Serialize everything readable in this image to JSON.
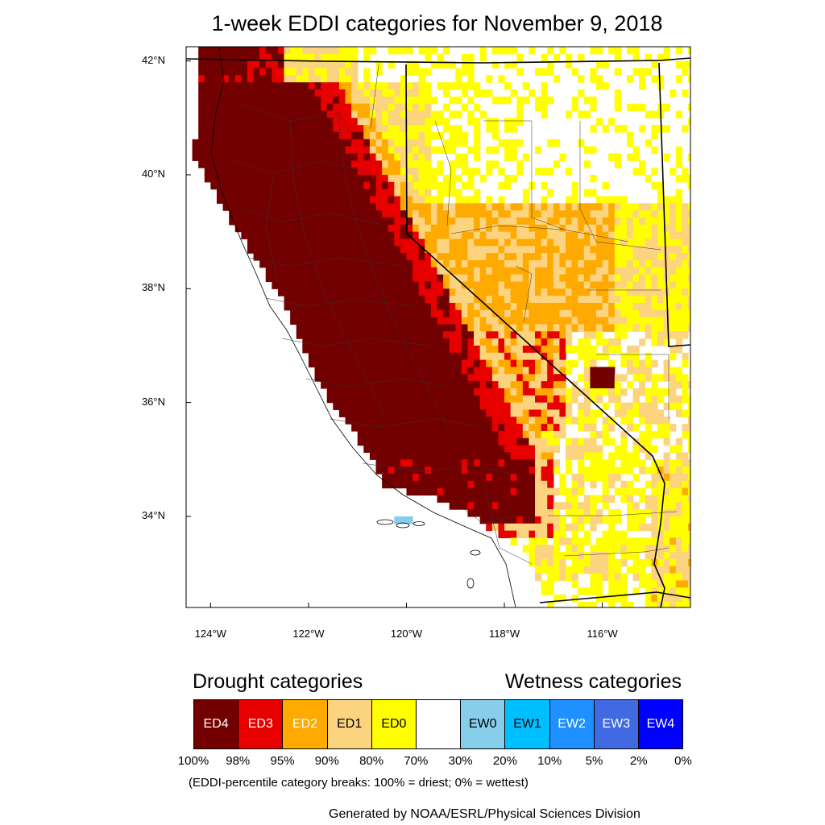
{
  "title": "1-week EDDI categories for November 9, 2018",
  "map": {
    "extent": {
      "lon_min": -124.5,
      "lon_max": -114.2,
      "lat_min": 32.4,
      "lat_max": 42.25
    },
    "lat_ticks": [
      {
        "value": 42,
        "label": "42°N"
      },
      {
        "value": 40,
        "label": "40°N"
      },
      {
        "value": 38,
        "label": "38°N"
      },
      {
        "value": 36,
        "label": "36°N"
      },
      {
        "value": 34,
        "label": "34°N"
      }
    ],
    "lon_ticks": [
      {
        "value": -124,
        "label": "124°W"
      },
      {
        "value": -122,
        "label": "122°W"
      },
      {
        "value": -120,
        "label": "120°W"
      },
      {
        "value": -118,
        "label": "118°W"
      },
      {
        "value": -116,
        "label": "116°W"
      }
    ],
    "cell_size_deg": 0.125,
    "region_categories": [
      {
        "region": "northern-california-coast-and-sacramento-valley",
        "category": "ED4"
      },
      {
        "region": "sierra-nevada-western-slope",
        "category": "ED4"
      },
      {
        "region": "central-coast-and-san-joaquin-valley",
        "category": "ED4"
      },
      {
        "region": "southern-california-mountains",
        "category": "ED4"
      },
      {
        "region": "sierra-crest-band",
        "category": "ED3"
      },
      {
        "region": "owens-valley",
        "category": "ED3"
      },
      {
        "region": "northeast-california-fringe",
        "category": "ED1"
      },
      {
        "region": "west-central-nevada",
        "category": "ED2"
      },
      {
        "region": "southern-nevada",
        "category": "ED1"
      },
      {
        "region": "northern-nevada-and-oregon-fringe",
        "category": "ED0"
      },
      {
        "region": "mojave-and-southwest-arizona",
        "category": "ED0"
      },
      {
        "region": "channel-islands",
        "category": "EW0"
      }
    ]
  },
  "legend": {
    "drought_heading": "Drought categories",
    "wetness_heading": "Wetness categories",
    "categories": [
      {
        "code": "ED4",
        "label": "ED4",
        "color": "#730000",
        "text_color": "#ffffff"
      },
      {
        "code": "ED3",
        "label": "ED3",
        "color": "#e60000",
        "text_color": "#ffffff"
      },
      {
        "code": "ED2",
        "label": "ED2",
        "color": "#ffaa00",
        "text_color": "#ffffff"
      },
      {
        "code": "ED1",
        "label": "ED1",
        "color": "#fcd37f",
        "text_color": "#000000"
      },
      {
        "code": "ED0",
        "label": "ED0",
        "color": "#ffff00",
        "text_color": "#000000"
      },
      {
        "code": "none",
        "label": "",
        "color": "#ffffff",
        "text_color": "#000000"
      },
      {
        "code": "EW0",
        "label": "EW0",
        "color": "#87ceeb",
        "text_color": "#000000"
      },
      {
        "code": "EW1",
        "label": "EW1",
        "color": "#00bfff",
        "text_color": "#000000"
      },
      {
        "code": "EW2",
        "label": "EW2",
        "color": "#1e90ff",
        "text_color": "#ffffff"
      },
      {
        "code": "EW3",
        "label": "EW3",
        "color": "#4169e1",
        "text_color": "#ffffff"
      },
      {
        "code": "EW4",
        "label": "EW4",
        "color": "#0000ff",
        "text_color": "#ffffff"
      }
    ],
    "percentile_breaks": [
      "100%",
      "98%",
      "95%",
      "90%",
      "80%",
      "70%",
      "30%",
      "20%",
      "10%",
      "5%",
      "2%",
      "0%"
    ],
    "note": "(EDDI-percentile category breaks: 100% = driest; 0% = wettest)"
  },
  "credit": "Generated by NOAA/ESRL/Physical Sciences Division"
}
